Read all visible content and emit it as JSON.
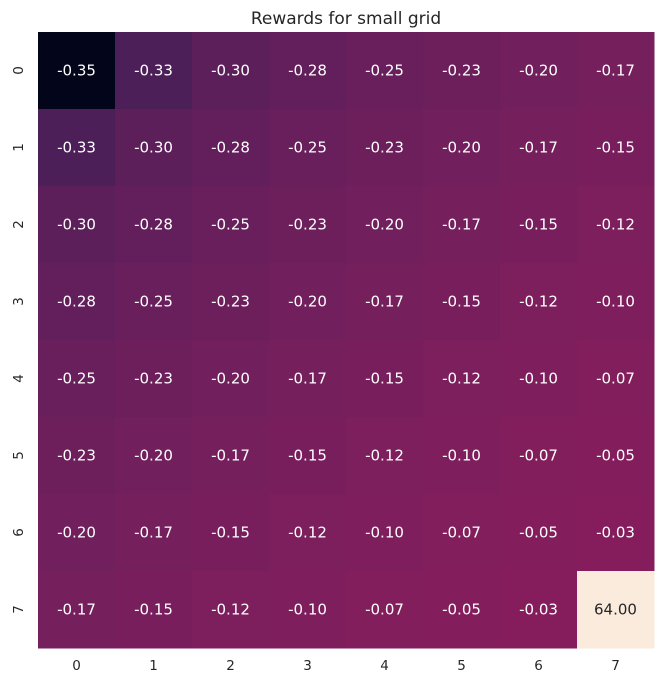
{
  "chart_data": {
    "type": "heatmap",
    "title": "Rewards for small grid",
    "xlabel": "",
    "ylabel": "",
    "x_tick_labels": [
      "0",
      "1",
      "2",
      "3",
      "4",
      "5",
      "6",
      "7"
    ],
    "y_tick_labels": [
      "0",
      "1",
      "2",
      "3",
      "4",
      "5",
      "6",
      "7"
    ],
    "values": [
      [
        -0.35,
        -0.33,
        -0.3,
        -0.28,
        -0.25,
        -0.23,
        -0.2,
        -0.17
      ],
      [
        -0.33,
        -0.3,
        -0.28,
        -0.25,
        -0.23,
        -0.2,
        -0.17,
        -0.15
      ],
      [
        -0.3,
        -0.28,
        -0.25,
        -0.23,
        -0.2,
        -0.17,
        -0.15,
        -0.12
      ],
      [
        -0.28,
        -0.25,
        -0.23,
        -0.2,
        -0.17,
        -0.15,
        -0.12,
        -0.1
      ],
      [
        -0.25,
        -0.23,
        -0.2,
        -0.17,
        -0.15,
        -0.12,
        -0.1,
        -0.07
      ],
      [
        -0.23,
        -0.2,
        -0.17,
        -0.15,
        -0.12,
        -0.1,
        -0.07,
        -0.05
      ],
      [
        -0.2,
        -0.17,
        -0.15,
        -0.12,
        -0.1,
        -0.07,
        -0.05,
        -0.03
      ],
      [
        -0.17,
        -0.15,
        -0.12,
        -0.1,
        -0.07,
        -0.05,
        -0.03,
        64.0
      ]
    ],
    "value_labels": [
      [
        "-0.35",
        "-0.33",
        "-0.30",
        "-0.28",
        "-0.25",
        "-0.23",
        "-0.20",
        "-0.17"
      ],
      [
        "-0.33",
        "-0.30",
        "-0.28",
        "-0.25",
        "-0.23",
        "-0.20",
        "-0.17",
        "-0.15"
      ],
      [
        "-0.30",
        "-0.28",
        "-0.25",
        "-0.23",
        "-0.20",
        "-0.17",
        "-0.15",
        "-0.12"
      ],
      [
        "-0.28",
        "-0.25",
        "-0.23",
        "-0.20",
        "-0.17",
        "-0.15",
        "-0.12",
        "-0.10"
      ],
      [
        "-0.25",
        "-0.23",
        "-0.20",
        "-0.17",
        "-0.15",
        "-0.12",
        "-0.10",
        "-0.07"
      ],
      [
        "-0.23",
        "-0.20",
        "-0.17",
        "-0.15",
        "-0.12",
        "-0.10",
        "-0.07",
        "-0.05"
      ],
      [
        "-0.20",
        "-0.17",
        "-0.15",
        "-0.12",
        "-0.10",
        "-0.07",
        "-0.05",
        "-0.03"
      ],
      [
        "-0.17",
        "-0.15",
        "-0.12",
        "-0.10",
        "-0.07",
        "-0.05",
        "-0.03",
        "64.00"
      ]
    ],
    "colormap": "rocket",
    "colorbar": false,
    "grid": false,
    "text_color_light": "#ffffff",
    "text_color_dark": "#262626"
  }
}
